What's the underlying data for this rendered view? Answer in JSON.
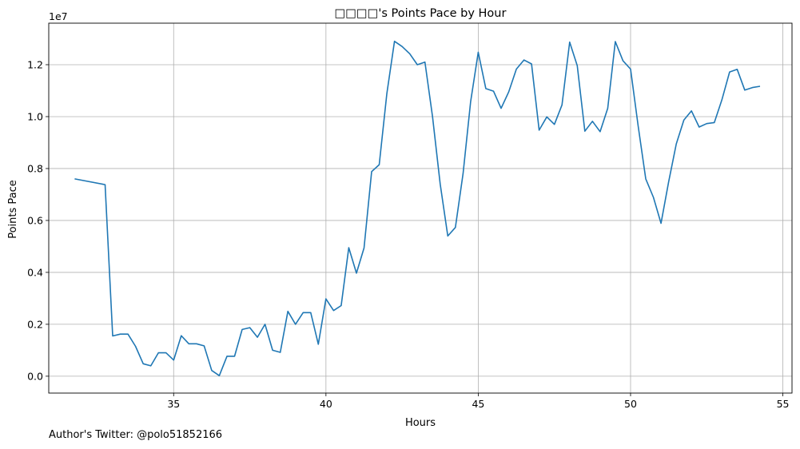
{
  "chart_data": {
    "type": "line",
    "title": "□□□□'s Points Pace by Hour",
    "xlabel": "Hours",
    "ylabel": "Points Pace",
    "y_offset_text": "1e7",
    "y_scale_factor": 10000000,
    "xlim": [
      30.9,
      55.3
    ],
    "ylim": [
      -650000,
      13600000
    ],
    "xticks": [
      35,
      40,
      45,
      50,
      55
    ],
    "xtick_labels": [
      "35",
      "40",
      "45",
      "50",
      "55"
    ],
    "yticks": [
      0,
      2000000,
      4000000,
      6000000,
      8000000,
      10000000,
      12000000
    ],
    "ytick_labels": [
      "0.0",
      "0.2",
      "0.4",
      "0.6",
      "0.8",
      "1.0",
      "1.2"
    ],
    "grid": true,
    "line_color": "#1f77b4",
    "series": [
      {
        "x": [
          31.75,
          32.75,
          33.0,
          33.25,
          33.5,
          33.75,
          34.0,
          34.25,
          34.5,
          34.75,
          35.0,
          35.25,
          35.5,
          35.75,
          36.0,
          36.25,
          36.5,
          36.75,
          37.0,
          37.25,
          37.5,
          37.75,
          38.0,
          38.25,
          38.5,
          38.75,
          39.0,
          39.25,
          39.5,
          39.75,
          40.0,
          40.25,
          40.5,
          40.75,
          41.0,
          41.25,
          41.5,
          41.75,
          42.0,
          42.25,
          42.5,
          42.75,
          43.0,
          43.25,
          43.5,
          43.75,
          44.0,
          44.25,
          44.5,
          44.75,
          45.0,
          45.25,
          45.5,
          45.75,
          46.0,
          46.25,
          46.5,
          46.75,
          47.0,
          47.25,
          47.5,
          47.75,
          48.0,
          48.25,
          48.5,
          48.75,
          49.0,
          49.25,
          49.5,
          49.75,
          50.0,
          50.25,
          50.5,
          50.75,
          51.0,
          51.25,
          51.5,
          51.75,
          52.0,
          52.25,
          52.5,
          52.75,
          53.0,
          53.25,
          53.5,
          53.75,
          54.0,
          54.25
        ],
        "y": [
          7600000,
          7380000,
          1550000,
          1620000,
          1620000,
          1150000,
          480000,
          400000,
          900000,
          900000,
          620000,
          1560000,
          1250000,
          1250000,
          1170000,
          220000,
          20000,
          770000,
          770000,
          1800000,
          1870000,
          1500000,
          2000000,
          1000000,
          920000,
          2500000,
          2000000,
          2450000,
          2450000,
          1230000,
          2980000,
          2530000,
          2720000,
          4950000,
          3970000,
          4940000,
          7880000,
          8150000,
          10900000,
          12900000,
          12700000,
          12420000,
          12000000,
          12100000,
          10000000,
          7400000,
          5400000,
          5730000,
          7800000,
          10580000,
          12480000,
          11080000,
          10980000,
          10320000,
          10950000,
          11830000,
          12180000,
          12030000,
          9480000,
          9990000,
          9700000,
          10450000,
          12870000,
          11960000,
          9440000,
          9820000,
          9420000,
          10320000,
          12890000,
          12150000,
          11830000,
          9640000,
          7600000,
          6890000,
          5890000,
          7480000,
          8950000,
          9870000,
          10220000,
          9600000,
          9730000,
          9770000,
          10650000,
          11720000,
          11820000,
          11020000,
          11120000,
          11170000
        ]
      }
    ],
    "footnote": "Author's Twitter: @polo51852166"
  }
}
